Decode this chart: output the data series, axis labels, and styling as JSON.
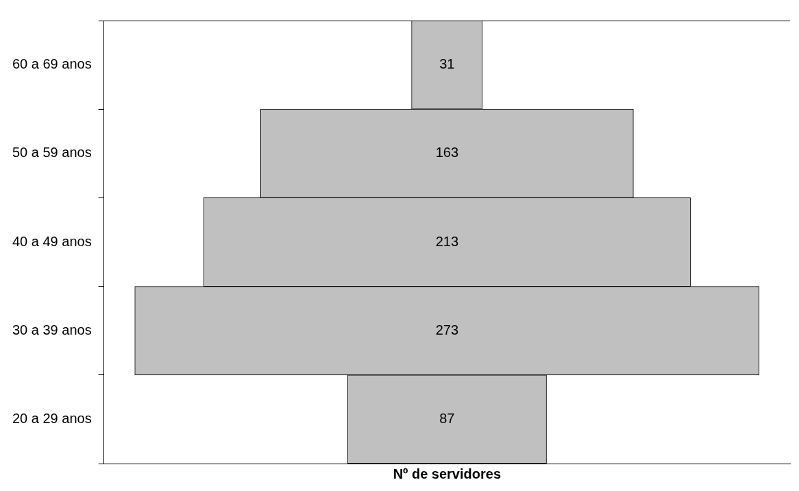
{
  "chart_data": {
    "type": "other",
    "xlabel": "Nº de servidores",
    "categories": [
      "60 a 69 anos",
      "50 a 59 anos",
      "40 a 49 anos",
      "30 a 39 anos",
      "20 a 29 anos"
    ],
    "values": [
      31,
      163,
      213,
      273,
      87
    ],
    "color": "#c0c0c0",
    "data_labels": true,
    "legend": false
  }
}
